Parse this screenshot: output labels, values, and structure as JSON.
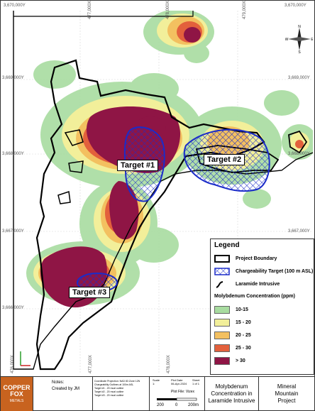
{
  "map": {
    "coords_top": [
      "3,670,000Y",
      "477,000X",
      "478,000X",
      "479,000X",
      "3,670,000Y"
    ],
    "coords_left": [
      "3,669,000Y",
      "3,668,000Y",
      "3,667,000Y",
      "3,666,000Y"
    ],
    "coords_right": [
      "3,669,000Y",
      "3,668,000Y",
      "3,667,000Y"
    ],
    "coords_bottom": [
      "476,000X",
      "477,000X",
      "478,000X"
    ],
    "targets": [
      "Target #1",
      "Target #2",
      "Target #3"
    ],
    "compass": {
      "n": "N",
      "e": "E",
      "s": "S",
      "w": "W"
    }
  },
  "legend": {
    "title": "Legend",
    "items": [
      {
        "label": "Project Boundary"
      },
      {
        "label": "Chargeability Target (100 m ASL)"
      },
      {
        "label": "Laramide Intrusive"
      }
    ],
    "concentration_title": "Molybdenum Concentration (ppm)",
    "classes": [
      {
        "label": "10-15",
        "color": "#a8dca0"
      },
      {
        "label": "15 - 20",
        "color": "#f2ef9a"
      },
      {
        "label": "20 - 25",
        "color": "#f3c060"
      },
      {
        "label": "25 - 30",
        "color": "#e3603c"
      },
      {
        "label": "> 30",
        "color": "#8f1545"
      }
    ]
  },
  "title_block": {
    "company": "COPPER FOX",
    "company_sub": "METALS",
    "notes_label": "Notes:",
    "notes_text": "Created by JM",
    "coord_proj": "Coordinate Projection: NAD 83 Zone 12N",
    "chargeability": "Chargeability Outlines at 100m ASL",
    "target1": "Target #1 - 20 mcal outline",
    "target2": "Target #2 - 20 mcal outline",
    "target3": "Target #3 - 20 mcal outline",
    "scale_label": "Scale",
    "scale_value": "1:",
    "plot_date_label": "Plot Date",
    "plot_date": "06-Apr-2024",
    "sheet_label": "Sheet",
    "sheet": "1 of 1",
    "plot_file": "Plot File: Vizex",
    "scale_bar": [
      "200",
      "0",
      "200m"
    ],
    "map_title": "Molybdenum Concentration in Laramide Intrusive",
    "project": "Mineral Mountain Project"
  }
}
